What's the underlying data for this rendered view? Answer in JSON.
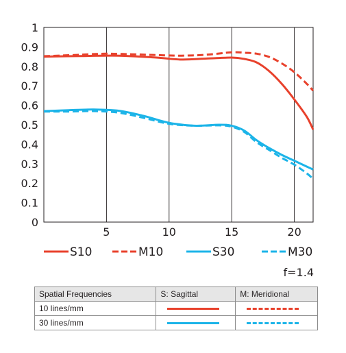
{
  "chart_data": {
    "type": "line",
    "xlim": [
      0,
      21.5
    ],
    "ylim": [
      0,
      1
    ],
    "x_ticks": [
      5,
      10,
      15,
      20
    ],
    "y_ticks": [
      0,
      0.1,
      0.2,
      0.3,
      0.4,
      0.5,
      0.6,
      0.7,
      0.8,
      0.9,
      1
    ],
    "y_tick_labels": [
      "0",
      "0.1",
      "0.2",
      "0.3",
      "0.4",
      "0.5",
      "0.6",
      "0.7",
      "0.8",
      "0.9",
      "1"
    ],
    "grid": "vertical",
    "legend": "below",
    "aperture_label": "f=1.4",
    "series": [
      {
        "name": "S10",
        "color": "#e8412c",
        "dash": false,
        "x": [
          0,
          3,
          6,
          9,
          11,
          13,
          15,
          16,
          17,
          18,
          19,
          20,
          21,
          21.5
        ],
        "y": [
          0.85,
          0.853,
          0.855,
          0.845,
          0.835,
          0.84,
          0.845,
          0.838,
          0.82,
          0.775,
          0.71,
          0.63,
          0.54,
          0.475
        ]
      },
      {
        "name": "M10",
        "color": "#e8412c",
        "dash": true,
        "x": [
          0,
          3,
          5,
          7,
          9,
          11,
          13,
          15,
          16,
          17,
          18,
          19,
          20,
          21,
          21.5
        ],
        "y": [
          0.852,
          0.86,
          0.865,
          0.862,
          0.858,
          0.855,
          0.86,
          0.872,
          0.87,
          0.865,
          0.848,
          0.815,
          0.77,
          0.71,
          0.675
        ]
      },
      {
        "name": "S30",
        "color": "#1cb4e8",
        "dash": false,
        "x": [
          0,
          2,
          4,
          6,
          8,
          10,
          12,
          14,
          15,
          16,
          17,
          18,
          19,
          20,
          21,
          21.5
        ],
        "y": [
          0.57,
          0.575,
          0.578,
          0.572,
          0.545,
          0.51,
          0.495,
          0.5,
          0.495,
          0.47,
          0.42,
          0.38,
          0.345,
          0.315,
          0.285,
          0.27
        ]
      },
      {
        "name": "M30",
        "color": "#1cb4e8",
        "dash": true,
        "x": [
          0,
          2,
          4,
          6,
          8,
          10,
          12,
          14,
          15,
          16,
          17,
          18,
          19,
          20,
          21,
          21.5
        ],
        "y": [
          0.568,
          0.568,
          0.57,
          0.562,
          0.535,
          0.505,
          0.495,
          0.497,
          0.49,
          0.463,
          0.41,
          0.37,
          0.33,
          0.295,
          0.25,
          0.222
        ]
      }
    ]
  },
  "key_table": {
    "headers": [
      "Spatial Frequencies",
      "S: Sagittal",
      "M: Meridional"
    ],
    "rows": [
      {
        "label": "10 lines/mm",
        "color": "#e8412c"
      },
      {
        "label": "30 lines/mm",
        "color": "#1cb4e8"
      }
    ]
  }
}
